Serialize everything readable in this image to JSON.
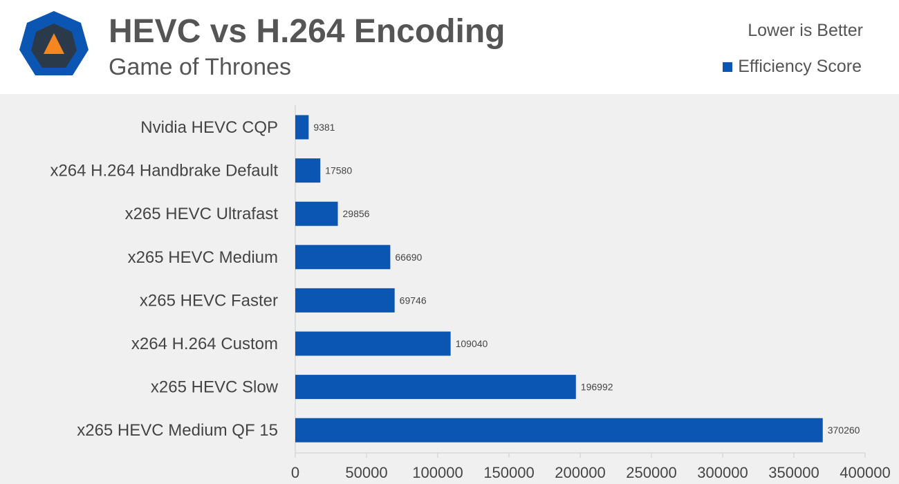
{
  "header": {
    "title": "HEVC vs H.264 Encoding",
    "subtitle": "Game of Thrones",
    "note": "Lower is Better",
    "logo_icon": "techspot-logo-icon"
  },
  "colors": {
    "bar": "#0b56b3",
    "logo_outer": "#0b56b3",
    "logo_inner": "#2a3a4a",
    "logo_triangle": "#f6861f"
  },
  "chart_data": {
    "type": "bar",
    "orientation": "horizontal",
    "categories": [
      "Nvidia HEVC CQP",
      "x264 H.264 Handbrake Default",
      "x265 HEVC Ultrafast",
      "x265 HEVC Medium",
      "x265 HEVC Faster",
      "x264 H.264 Custom",
      "x265 HEVC Slow",
      "x265 HEVC Medium QF 15"
    ],
    "series": [
      {
        "name": "Efficiency Score",
        "values": [
          9381,
          17580,
          29856,
          66690,
          69746,
          109040,
          196992,
          370260
        ]
      }
    ],
    "xlim": [
      0,
      400000
    ],
    "xticks": [
      0,
      50000,
      100000,
      150000,
      200000,
      250000,
      300000,
      350000,
      400000
    ],
    "grid": false,
    "legend_position": "top-right"
  }
}
